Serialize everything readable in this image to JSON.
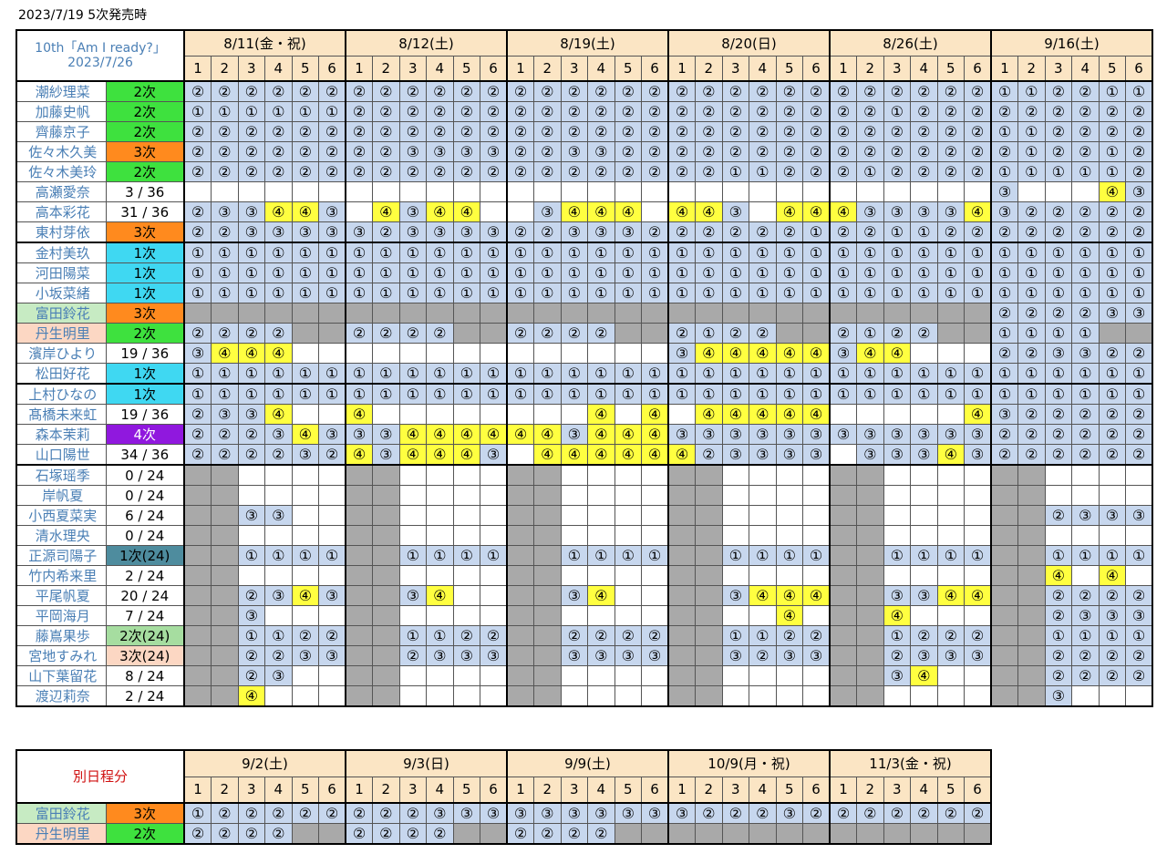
{
  "note": "2023/7/19 5次発売時",
  "main": {
    "title_line1": "10th「Am I ready?」",
    "title_line2": "2023/7/26",
    "perf_labels": [
      "1",
      "2",
      "3",
      "4",
      "5",
      "6"
    ],
    "dates": [
      "8/11(金・祝)",
      "8/12(土)",
      "8/19(土)",
      "8/20(日)",
      "8/26(土)",
      "9/16(土)"
    ],
    "rows": [
      {
        "name": "潮紗理菜",
        "status": "2次",
        "st": "green",
        "cells": "BBBBBB BBBBBB BBBBBB BBBBBB BBBBBB BBBBBB",
        "vals": "222222 222222 222222 222222 222222 112211"
      },
      {
        "name": "加藤史帆",
        "status": "2次",
        "st": "green",
        "cells": "BBBBBB BBBBBB BBBBBB BBBBBB BBBBBB BBBBBB",
        "vals": "111111 222222 222222 222222 221222 222222"
      },
      {
        "name": "齊藤京子",
        "status": "2次",
        "st": "green",
        "cells": "BBBBBB BBBBBB BBBBBB BBBBBB BBBBBB BBBBBB",
        "vals": "222222 222222 222222 222222 222222 112222"
      },
      {
        "name": "佐々木久美",
        "status": "3次",
        "st": "orange",
        "cells": "BBBBBB BBBBBB BBBBBB BBBBBB BBBBBB BBBBBB",
        "vals": "222222 223333 223322 222222 222222 212212"
      },
      {
        "name": "佐々木美玲",
        "status": "2次",
        "st": "green",
        "cells": "BBBBBB BBBBBB BBBBBB BBBBBB BBBBBB BBBBBB",
        "vals": "222222 222222 222222 221122 212222 111112"
      },
      {
        "name": "高瀬愛奈",
        "status": "3 / 36",
        "st": "",
        "cells": "WWWWWW WWWWWW WWWWWW WWWWWW WWWWWW BWWWYB",
        "vals": "------ ------ ------ ------ ------ 3---43"
      },
      {
        "name": "高本彩花",
        "status": "31 / 36",
        "st": "",
        "cells": "BBBYYB WYBYYW WBYYYW YYBWYY YBBBBY BBBBBB",
        "vals": "233443 -4344- -3444- 443-44 433334 322222"
      },
      {
        "name": "東村芽依",
        "status": "3次",
        "st": "orange",
        "cells": "BBBBBB BBBBBB BBBBBB BBBBBB BBBBBB BBBBBB",
        "vals": "223333 323333 223332 222221 221122 222222",
        "end": true
      },
      {
        "name": "金村美玖",
        "status": "1次",
        "st": "cyan",
        "cells": "BBBBBB BBBBBB BBBBBB BBBBBB BBBBBB BBBBBB",
        "vals": "111111 111111 111111 111111 111111 111111"
      },
      {
        "name": "河田陽菜",
        "status": "1次",
        "st": "cyan",
        "cells": "BBBBBB BBBBBB BBBBBB BBBBBB BBBBBB BBBBBB",
        "vals": "111111 111111 111111 111111 111111 111111"
      },
      {
        "name": "小坂菜緒",
        "status": "1次",
        "st": "cyan",
        "cells": "BBBBBB BBBBBB BBBBBB BBBBBB BBBBBB BBBBBB",
        "vals": "111111 111111 111111 111111 111111 111111"
      },
      {
        "name": "富田鈴花",
        "status": "3次",
        "st": "orange",
        "hl": "green",
        "cells": "GGGGGG GGGGGG GGGGGG GGGGGG GGGGGG BBBBBB",
        "vals": "------ ------ ------ ------ ------ 222233"
      },
      {
        "name": "丹生明里",
        "status": "2次",
        "st": "green",
        "hl": "peach",
        "cells": "BBBBGG BBBBGG BBBBGG BBBBGG BBBBGG BBBBGG",
        "vals": "2222-- 2222-- 2222-- 2122-- 2122-- 1111--"
      },
      {
        "name": "濱岸ひより",
        "status": "19 / 36",
        "st": "",
        "cells": "BYYYWW WWWWWW WWWWWW BYYYYY BYYWWW BBBBBB",
        "vals": "3444-- ------ ------ 344444 344--- 223322"
      },
      {
        "name": "松田好花",
        "status": "1次",
        "st": "cyan",
        "cells": "BBBBBB BBBBBB BBBBBB BBBBBB BBBBBB BBBBBB",
        "vals": "111111 111111 111111 111111 111111 111111",
        "end": true
      },
      {
        "name": "上村ひなの",
        "status": "1次",
        "st": "cyan",
        "cells": "BBBBBB BBBBBB BBBBBB BBBBBB BBBBBB BBBBBB",
        "vals": "111111 111111 111111 111111 111111 111111"
      },
      {
        "name": "髙橋未来虹",
        "status": "19 / 36",
        "st": "",
        "cells": "BBBYWW YWWWWW WWWYWY WYYYYY WWWWWY BBBBBB",
        "vals": "2334-- 4----- ---4-4 -44444 -----4 322222"
      },
      {
        "name": "森本茉莉",
        "status": "4次",
        "st": "purple",
        "cells": "BBBBYB BBYYYY YYBYYY BBBBBB BBBBBB BBBBBB",
        "vals": "222343 334444 443444 333333 333333 222222"
      },
      {
        "name": "山口陽世",
        "status": "34 / 36",
        "st": "",
        "cells": "BBBBBB YBYYYB WYYYYY YBBBBB WBBBYB BBBBBB",
        "vals": "222232 434443 -44444 423333 -33343 222222",
        "end": true
      },
      {
        "name": "石塚瑶季",
        "status": "0 / 24",
        "st": "",
        "cells": "GGWWWW GGWWWW GGWWWW GGWWWW GGWWWW GGWWWW",
        "vals": "------ ------ ------ ------ ------ ------"
      },
      {
        "name": "岸帆夏",
        "status": "0 / 24",
        "st": "",
        "cells": "GGWWWW GGWWWW GGWWWW GGWWWW GGWWWW GGWWWW",
        "vals": "------ ------ ------ ------ ------ ------"
      },
      {
        "name": "小西夏菜実",
        "status": "6 / 24",
        "st": "",
        "cells": "GGBBWW GGWWWW GGWWWW GGWWWW GGWWWW GGBBBB",
        "vals": "--33-- ------ ------ ------ ------ --2333"
      },
      {
        "name": "清水理央",
        "status": "0 / 24",
        "st": "",
        "cells": "GGWWWW GGWWWW GGWWWW GGWWWW GGWWWW GGWWWW",
        "vals": "------ ------ ------ ------ ------ ------"
      },
      {
        "name": "正源司陽子",
        "status": "1次(24)",
        "st": "teal",
        "cells": "GGBBBB GGBBBB GGBBBB GGBBBB GGBBBB GGBBBB",
        "vals": "--1111 --1111 --1111 --1111 --1111 --1111"
      },
      {
        "name": "竹内希来里",
        "status": "2 / 24",
        "st": "",
        "cells": "GGWWWW GGWWWW GGWWWW GGWWWW GGWWWW GGYWYW",
        "vals": "------ ------ ------ ------ ------ --4-4-"
      },
      {
        "name": "平尾帆夏",
        "status": "20 / 24",
        "st": "",
        "cells": "GGBBYB GGBYWW GGBYWW GGBYYY GGBBYY GGBBBB",
        "vals": "--2343 --34-- --34-- --3444 --3344 --2222"
      },
      {
        "name": "平岡海月",
        "status": "7 / 24",
        "st": "",
        "cells": "GGBWWW GGWWWW GGWWWW GGWWYW GGYWWW GGBBBB",
        "vals": "--3--- ------ ------ ----4- --4--- --2333"
      },
      {
        "name": "藤嶌果歩",
        "status": "2次(24)",
        "st": "lgreen",
        "cells": "GGBBBB GGBBBB GGBBBB GGBBBB GGBBBB GGBBBB",
        "vals": "--1122 --1122 --2222 --1122 --1222 --1111"
      },
      {
        "name": "宮地すみれ",
        "status": "3次(24)",
        "st": "peach",
        "cells": "GGBBBB GGBBBB GGBBBB GGBBBB GGBBBB GGBBBB",
        "vals": "--2233 --2333 --3333 --3233 --2333 --2222"
      },
      {
        "name": "山下葉留花",
        "status": "8 / 24",
        "st": "",
        "cells": "GGBBWW GGWWWW GGWWWW GGWWWW GGBYWW GGBBBB",
        "vals": "--23-- ------ ------ ------ --34-- --2222"
      },
      {
        "name": "渡辺莉奈",
        "status": "2 / 24",
        "st": "",
        "cells": "GGYWWW GGWWWW GGWWWW GGWWWW GGWWWW GGBWWW",
        "vals": "--4--- ------ ------ ------ ------ --3---"
      }
    ]
  },
  "sub": {
    "title": "別日程分",
    "perf_labels": [
      "1",
      "2",
      "3",
      "4",
      "5",
      "6"
    ],
    "dates": [
      "9/2(土)",
      "9/3(日)",
      "9/9(土)",
      "10/9(月・祝)",
      "11/3(金・祝)"
    ],
    "rows": [
      {
        "name": "富田鈴花",
        "status": "3次",
        "st": "orange",
        "hl": "green",
        "cells": "BBBBBB BBBBBB BBBBBB BBBBBB BBBBBB",
        "vals": "122222 222333 333333 322232 222222"
      },
      {
        "name": "丹生明里",
        "status": "2次",
        "st": "green",
        "hl": "peach",
        "cells": "BBBBGG BBBBGG BBBBGG GGGGGG GGGGGG",
        "vals": "2222-- 2222-- 2222-- ------ ------"
      }
    ]
  }
}
